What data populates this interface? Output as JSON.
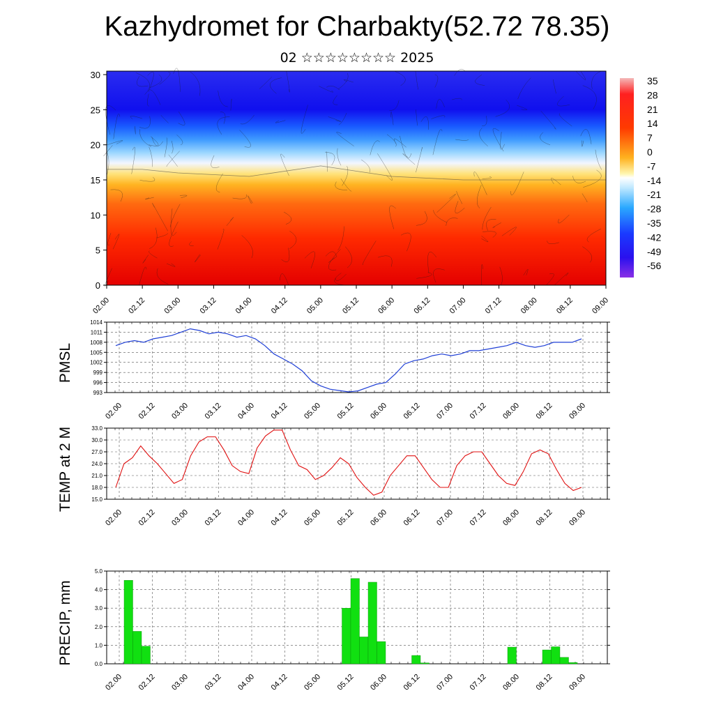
{
  "header": {
    "title": "Kazhydromet for Charbakty(52.72 78.35)",
    "subtitle": "02 ☆☆☆☆☆☆☆☆ 2025"
  },
  "colors": {
    "pmsl_line": "#1f3fd6",
    "temp_line": "#e01010",
    "precip_bar": "#11e011",
    "cross_section": [
      "#7a1fd6",
      "#1010ff",
      "#1f7fff",
      "#8fd8ff",
      "#ffffff",
      "#ffe27a",
      "#ffb21f",
      "#ff5010",
      "#ff0000",
      "#f0b0b0"
    ]
  },
  "chart_data": [
    {
      "type": "heatmap",
      "title": "",
      "xlabel": "",
      "ylabel": "",
      "y_ticks": [
        "0",
        "5",
        "10",
        "15",
        "20",
        "25",
        "30"
      ],
      "ylim": [
        0,
        30.5
      ],
      "x_ticks": [
        "02.00",
        "02.12",
        "03.00",
        "03.12",
        "04.00",
        "04.12",
        "05.00",
        "05.12",
        "06.00",
        "06.12",
        "07.00",
        "07.12",
        "08.00",
        "08.12",
        "09.00"
      ],
      "colorbar_labels": [
        "35",
        "28",
        "21",
        "14",
        "7",
        "0",
        "-7",
        "-14",
        "-21",
        "-28",
        "-35",
        "-42",
        "-49",
        "-56"
      ],
      "freezing_level_by_x": [
        {
          "x": "02.00",
          "level": 16.5
        },
        {
          "x": "02.12",
          "level": 16.5
        },
        {
          "x": "03.00",
          "level": 16.0
        },
        {
          "x": "04.00",
          "level": 15.5
        },
        {
          "x": "05.00",
          "level": 17.0
        },
        {
          "x": "06.00",
          "level": 15.5
        },
        {
          "x": "07.00",
          "level": 15.0
        },
        {
          "x": "09.00",
          "level": 15.0
        }
      ],
      "overlay": "wind streamlines"
    },
    {
      "type": "line",
      "ylabel": "PMSL",
      "y_ticks": [
        "993",
        "996",
        "999",
        "1002",
        "1005",
        "1008",
        "1011",
        "1014"
      ],
      "ylim": [
        993,
        1014
      ],
      "x_ticks": [
        "02.00",
        "02.12",
        "03.00",
        "03.12",
        "04.00",
        "04.12",
        "05.00",
        "05.12",
        "06.00",
        "06.12",
        "07.00",
        "07.12",
        "08.00",
        "08.12",
        "09.00"
      ],
      "series": [
        {
          "values": [
            1007,
            1008,
            1008.5,
            1008,
            1009,
            1009.5,
            1010,
            1011,
            1012,
            1011.5,
            1010.5,
            1011,
            1010.5,
            1009.5,
            1010,
            1009,
            1007,
            1004.5,
            1003,
            1001.5,
            999.5,
            996.5,
            995,
            994,
            993.6,
            993.2,
            993.5,
            994.5,
            995.5,
            996,
            998.5,
            1001.5,
            1002.5,
            1003,
            1004,
            1004.5,
            1004,
            1004.5,
            1005.5,
            1005.5,
            1006,
            1006.5,
            1007,
            1008,
            1007,
            1006.5,
            1007,
            1008,
            1008,
            1008,
            1009
          ]
        }
      ]
    },
    {
      "type": "line",
      "ylabel": "TEMP at 2 M",
      "y_ticks": [
        "15.0",
        "18.0",
        "21.0",
        "24.0",
        "27.0",
        "30.0",
        "33.0"
      ],
      "ylim": [
        15,
        33
      ],
      "x_ticks": [
        "02.00",
        "02.12",
        "03.00",
        "03.12",
        "04.00",
        "04.12",
        "05.00",
        "05.12",
        "06.00",
        "06.12",
        "07.00",
        "07.12",
        "08.00",
        "08.12",
        "09.00"
      ],
      "series": [
        {
          "values": [
            18,
            24,
            25.5,
            28.5,
            26,
            24,
            21.5,
            19,
            20,
            26,
            29.5,
            30.8,
            30.8,
            27.5,
            23.5,
            22,
            21.5,
            28,
            31,
            32.5,
            32.5,
            27.5,
            23.5,
            22.5,
            20,
            21,
            23,
            25.5,
            24,
            20.5,
            18,
            16,
            16.8,
            21,
            23.5,
            26,
            26,
            23,
            20,
            18,
            18,
            23.5,
            26,
            27,
            27,
            24,
            21,
            19,
            18.5,
            22,
            26.5,
            27.5,
            26.5,
            22.5,
            19,
            17.2,
            18
          ]
        }
      ]
    },
    {
      "type": "bar",
      "ylabel": "PRECIP, mm",
      "y_ticks": [
        "0.0",
        "1.0",
        "2.0",
        "3.0",
        "4.0",
        "5.0"
      ],
      "ylim": [
        0,
        5
      ],
      "x_ticks": [
        "02.00",
        "02.12",
        "03.00",
        "03.12",
        "04.00",
        "04.12",
        "05.00",
        "05.12",
        "06.00",
        "06.12",
        "07.00",
        "07.12",
        "08.00",
        "08.12",
        "09.00"
      ],
      "values": [
        0,
        0,
        4.5,
        1.75,
        0.95,
        0,
        0,
        0,
        0,
        0,
        0,
        0,
        0,
        0,
        0,
        0,
        0,
        0,
        0,
        0,
        0,
        0,
        0,
        0,
        0,
        0,
        0,
        3.0,
        4.6,
        1.45,
        4.4,
        1.2,
        0,
        0,
        0,
        0.45,
        0.05,
        0,
        0,
        0,
        0,
        0,
        0,
        0,
        0,
        0,
        0.9,
        0,
        0,
        0,
        0.75,
        0.92,
        0.35,
        0.07,
        0,
        0,
        0,
        0
      ]
    }
  ]
}
